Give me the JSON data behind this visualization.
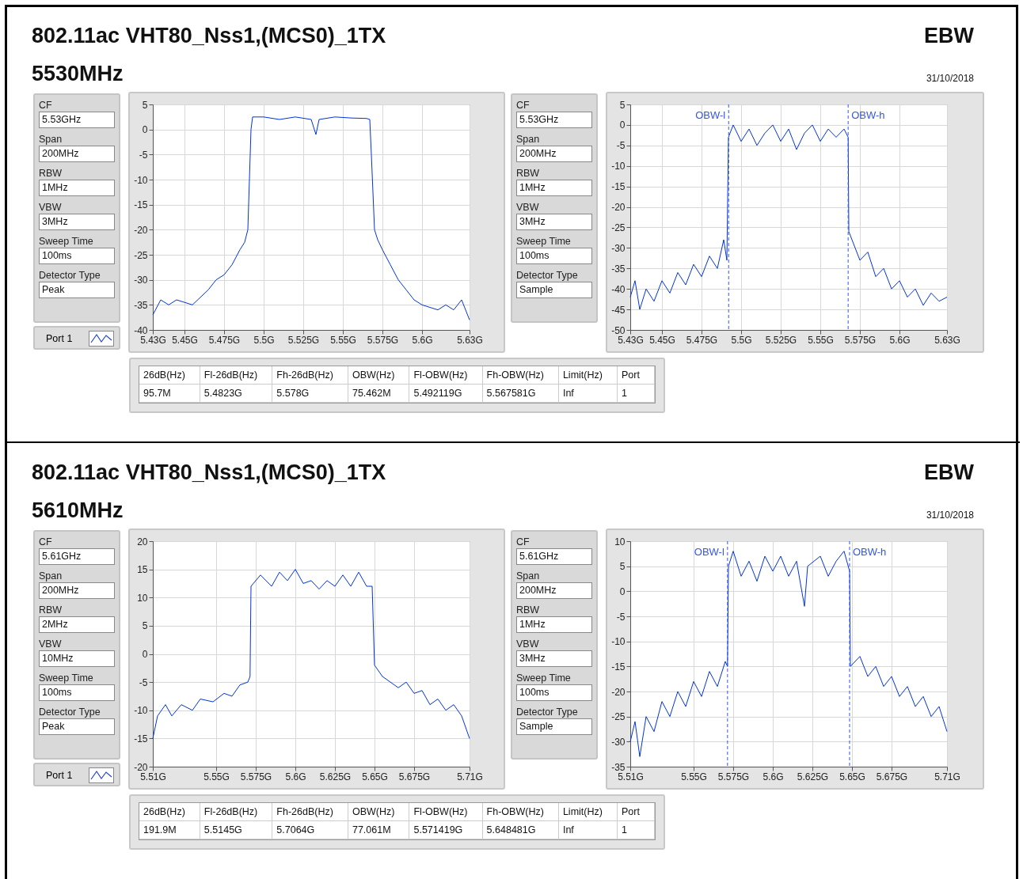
{
  "chart_data": [
    {
      "type": "other",
      "title": "802.11ac VHT80_Nss1,(MCS0)_1TX",
      "subtitle": "5530MHz",
      "annotations": [
        "EBW",
        "31/10/2018"
      ]
    },
    {
      "type": "other",
      "annotations": [
        "CF",
        "5.53GHz",
        "Span",
        "200MHz",
        "RBW",
        "1MHz",
        "VBW",
        "3MHz",
        "Sweep Time",
        "100ms",
        "Detector Type",
        "Peak",
        "Port 1"
      ]
    },
    {
      "type": "line",
      "x": [
        5.43,
        5.435,
        5.44,
        5.445,
        5.45,
        5.455,
        5.46,
        5.465,
        5.47,
        5.475,
        5.48,
        5.485,
        5.488,
        5.49,
        5.491,
        5.492,
        5.493,
        5.5,
        5.51,
        5.52,
        5.53,
        5.533,
        5.535,
        5.545,
        5.555,
        5.565,
        5.567,
        5.568,
        5.57,
        5.572,
        5.575,
        5.58,
        5.585,
        5.59,
        5.595,
        5.6,
        5.605,
        5.61,
        5.615,
        5.62,
        5.625,
        5.63
      ],
      "series": [
        {
          "color": "#0033dd",
          "values": [
            -37,
            -34,
            -35,
            -34,
            -34.5,
            -35,
            -33.5,
            -32,
            -30,
            -29,
            -27,
            -24,
            -22.5,
            -20,
            -10,
            0,
            2.5,
            2.5,
            2,
            2.5,
            2,
            -1,
            2,
            2.5,
            2.3,
            2.2,
            2,
            -5,
            -20,
            -22,
            -24,
            -27,
            -30,
            -32,
            -34,
            -35,
            -35.5,
            -36,
            -35,
            -36,
            -34,
            -38
          ]
        }
      ],
      "xlim": [
        5.43,
        5.63
      ],
      "xticks": [
        {
          "value": 5.43,
          "label": "5.43G"
        },
        {
          "value": 5.45,
          "label": "5.45G"
        },
        {
          "value": 5.475,
          "label": "5.475G"
        },
        {
          "value": 5.5,
          "label": "5.5G"
        },
        {
          "value": 5.525,
          "label": "5.525G"
        },
        {
          "value": 5.55,
          "label": "5.55G"
        },
        {
          "value": 5.575,
          "label": "5.575G"
        },
        {
          "value": 5.6,
          "label": "5.6G"
        },
        {
          "value": 5.63,
          "label": "5.63G"
        }
      ],
      "ylim": [
        -40,
        5
      ],
      "yticks": [
        -40,
        -35,
        -30,
        -25,
        -20,
        -15,
        -10,
        -5,
        0,
        5
      ],
      "grid": true
    },
    {
      "type": "other",
      "annotations": [
        "CF",
        "5.53GHz",
        "Span",
        "200MHz",
        "RBW",
        "1MHz",
        "VBW",
        "3MHz",
        "Sweep Time",
        "100ms",
        "Detector Type",
        "Sample"
      ]
    },
    {
      "type": "line",
      "x": [
        5.43,
        5.433,
        5.436,
        5.44,
        5.445,
        5.45,
        5.455,
        5.46,
        5.465,
        5.47,
        5.475,
        5.48,
        5.485,
        5.489,
        5.491,
        5.492,
        5.495,
        5.5,
        5.505,
        5.51,
        5.515,
        5.52,
        5.525,
        5.53,
        5.535,
        5.54,
        5.545,
        5.55,
        5.555,
        5.56,
        5.565,
        5.5676,
        5.568,
        5.57,
        5.575,
        5.58,
        5.585,
        5.59,
        5.595,
        5.6,
        5.605,
        5.61,
        5.615,
        5.62,
        5.625,
        5.63
      ],
      "series": [
        {
          "color": "#0033dd",
          "values": [
            -42,
            -38,
            -45,
            -40,
            -43,
            -38,
            -41,
            -36,
            -39,
            -34,
            -37,
            -32,
            -35,
            -28,
            -33,
            -3,
            0,
            -4,
            -1,
            -5,
            -2,
            0,
            -4,
            -1,
            -6,
            -2,
            0,
            -4,
            -1,
            -3,
            -1,
            -3,
            -26,
            -28,
            -33,
            -31,
            -37,
            -35,
            -40,
            -38,
            -42,
            -40,
            -44,
            -41,
            -43,
            -42
          ]
        }
      ],
      "xlim": [
        5.43,
        5.63
      ],
      "xticks": [
        {
          "value": 5.43,
          "label": "5.43G"
        },
        {
          "value": 5.45,
          "label": "5.45G"
        },
        {
          "value": 5.475,
          "label": "5.475G"
        },
        {
          "value": 5.5,
          "label": "5.5G"
        },
        {
          "value": 5.525,
          "label": "5.525G"
        },
        {
          "value": 5.55,
          "label": "5.55G"
        },
        {
          "value": 5.575,
          "label": "5.575G"
        },
        {
          "value": 5.6,
          "label": "5.6G"
        },
        {
          "value": 5.63,
          "label": "5.63G"
        }
      ],
      "ylim": [
        -50,
        5
      ],
      "yticks": [
        -50,
        -45,
        -40,
        -35,
        -30,
        -25,
        -20,
        -15,
        -10,
        -5,
        0,
        5
      ],
      "grid": true,
      "ref_lines": [
        {
          "axis": "x",
          "value": 5.492119,
          "label": "OBW-l",
          "color": "#3355ee",
          "line_style": "dashed"
        },
        {
          "axis": "x",
          "value": 5.567581,
          "label": "OBW-h",
          "color": "#3355ee",
          "line_style": "dashed"
        }
      ]
    },
    {
      "type": "other",
      "annotations": [
        "26dB(Hz)",
        "Fl-26dB(Hz)",
        "Fh-26dB(Hz)",
        "OBW(Hz)",
        "Fl-OBW(Hz)",
        "Fh-OBW(Hz)",
        "Limit(Hz)",
        "Port",
        "95.7M",
        "5.4823G",
        "5.578G",
        "75.462M",
        "5.492119G",
        "5.567581G",
        "Inf",
        "1"
      ]
    },
    {
      "type": "other",
      "title": "802.11ac VHT80_Nss1,(MCS0)_1TX",
      "subtitle": "5610MHz",
      "annotations": [
        "EBW",
        "31/10/2018"
      ]
    },
    {
      "type": "other",
      "annotations": [
        "CF",
        "5.61GHz",
        "Span",
        "200MHz",
        "RBW",
        "2MHz",
        "VBW",
        "10MHz",
        "Sweep Time",
        "100ms",
        "Detector Type",
        "Peak",
        "Port 1"
      ]
    },
    {
      "type": "line",
      "x": [
        5.51,
        5.513,
        5.518,
        5.522,
        5.528,
        5.535,
        5.54,
        5.548,
        5.555,
        5.56,
        5.565,
        5.57,
        5.5714,
        5.572,
        5.578,
        5.585,
        5.59,
        5.595,
        5.6,
        5.605,
        5.61,
        5.615,
        5.62,
        5.625,
        5.63,
        5.635,
        5.64,
        5.645,
        5.6485,
        5.65,
        5.655,
        5.66,
        5.665,
        5.67,
        5.675,
        5.68,
        5.685,
        5.69,
        5.695,
        5.7,
        5.705,
        5.71
      ],
      "series": [
        {
          "color": "#0033dd",
          "values": [
            -15,
            -11,
            -9,
            -11,
            -9,
            -10,
            -8,
            -8.5,
            -7,
            -7.5,
            -5.5,
            -5,
            -4,
            12,
            14,
            12,
            14.5,
            13,
            15,
            12.5,
            13,
            11.5,
            13,
            12,
            14,
            12,
            14.5,
            12,
            12,
            -2,
            -4,
            -5,
            -6,
            -5,
            -7,
            -6.5,
            -9,
            -8,
            -10,
            -9,
            -11,
            -15
          ]
        }
      ],
      "xlim": [
        5.51,
        5.71
      ],
      "xticks": [
        {
          "value": 5.51,
          "label": "5.51G"
        },
        {
          "value": 5.55,
          "label": "5.55G"
        },
        {
          "value": 5.575,
          "label": "5.575G"
        },
        {
          "value": 5.6,
          "label": "5.6G"
        },
        {
          "value": 5.625,
          "label": "5.625G"
        },
        {
          "value": 5.65,
          "label": "5.65G"
        },
        {
          "value": 5.675,
          "label": "5.675G"
        },
        {
          "value": 5.71,
          "label": "5.71G"
        }
      ],
      "ylim": [
        -20,
        20
      ],
      "yticks": [
        -20,
        -15,
        -10,
        -5,
        0,
        5,
        10,
        15,
        20
      ],
      "grid": true
    },
    {
      "type": "other",
      "annotations": [
        "CF",
        "5.61GHz",
        "Span",
        "200MHz",
        "RBW",
        "1MHz",
        "VBW",
        "3MHz",
        "Sweep Time",
        "100ms",
        "Detector Type",
        "Sample"
      ]
    },
    {
      "type": "line",
      "x": [
        5.51,
        5.513,
        5.516,
        5.52,
        5.525,
        5.53,
        5.535,
        5.54,
        5.545,
        5.55,
        5.555,
        5.56,
        5.565,
        5.57,
        5.5714,
        5.572,
        5.575,
        5.58,
        5.585,
        5.59,
        5.595,
        5.6,
        5.605,
        5.61,
        5.615,
        5.62,
        5.622,
        5.63,
        5.635,
        5.64,
        5.645,
        5.6485,
        5.649,
        5.655,
        5.66,
        5.665,
        5.67,
        5.675,
        5.68,
        5.685,
        5.69,
        5.695,
        5.7,
        5.705,
        5.71
      ],
      "series": [
        {
          "color": "#0033dd",
          "values": [
            -30,
            -26,
            -33,
            -25,
            -28,
            -22,
            -25,
            -20,
            -23,
            -18,
            -21,
            -16,
            -19,
            -14,
            -15,
            5,
            8,
            3,
            6,
            2,
            7,
            4,
            7,
            3,
            6,
            -3,
            5,
            7,
            3,
            6,
            8,
            4,
            -15,
            -13,
            -17,
            -15,
            -19,
            -17,
            -21,
            -19,
            -23,
            -21,
            -25,
            -23,
            -28
          ]
        }
      ],
      "xlim": [
        5.51,
        5.71
      ],
      "xticks": [
        {
          "value": 5.51,
          "label": "5.51G"
        },
        {
          "value": 5.55,
          "label": "5.55G"
        },
        {
          "value": 5.575,
          "label": "5.575G"
        },
        {
          "value": 5.6,
          "label": "5.6G"
        },
        {
          "value": 5.625,
          "label": "5.625G"
        },
        {
          "value": 5.65,
          "label": "5.65G"
        },
        {
          "value": 5.675,
          "label": "5.675G"
        },
        {
          "value": 5.71,
          "label": "5.71G"
        }
      ],
      "ylim": [
        -35,
        10
      ],
      "yticks": [
        -35,
        -30,
        -25,
        -20,
        -15,
        -10,
        -5,
        0,
        5,
        10
      ],
      "grid": true,
      "ref_lines": [
        {
          "axis": "x",
          "value": 5.571419,
          "label": "OBW-l",
          "color": "#3355ee",
          "line_style": "dashed"
        },
        {
          "axis": "x",
          "value": 5.648481,
          "label": "OBW-h",
          "color": "#3355ee",
          "line_style": "dashed"
        }
      ]
    },
    {
      "type": "other",
      "annotations": [
        "26dB(Hz)",
        "Fl-26dB(Hz)",
        "Fh-26dB(Hz)",
        "OBW(Hz)",
        "Fl-OBW(Hz)",
        "Fh-OBW(Hz)",
        "Limit(Hz)",
        "Port",
        "191.9M",
        "5.5145G",
        "5.7064G",
        "77.061M",
        "5.571419G",
        "5.648481G",
        "Inf",
        "1"
      ]
    }
  ]
}
